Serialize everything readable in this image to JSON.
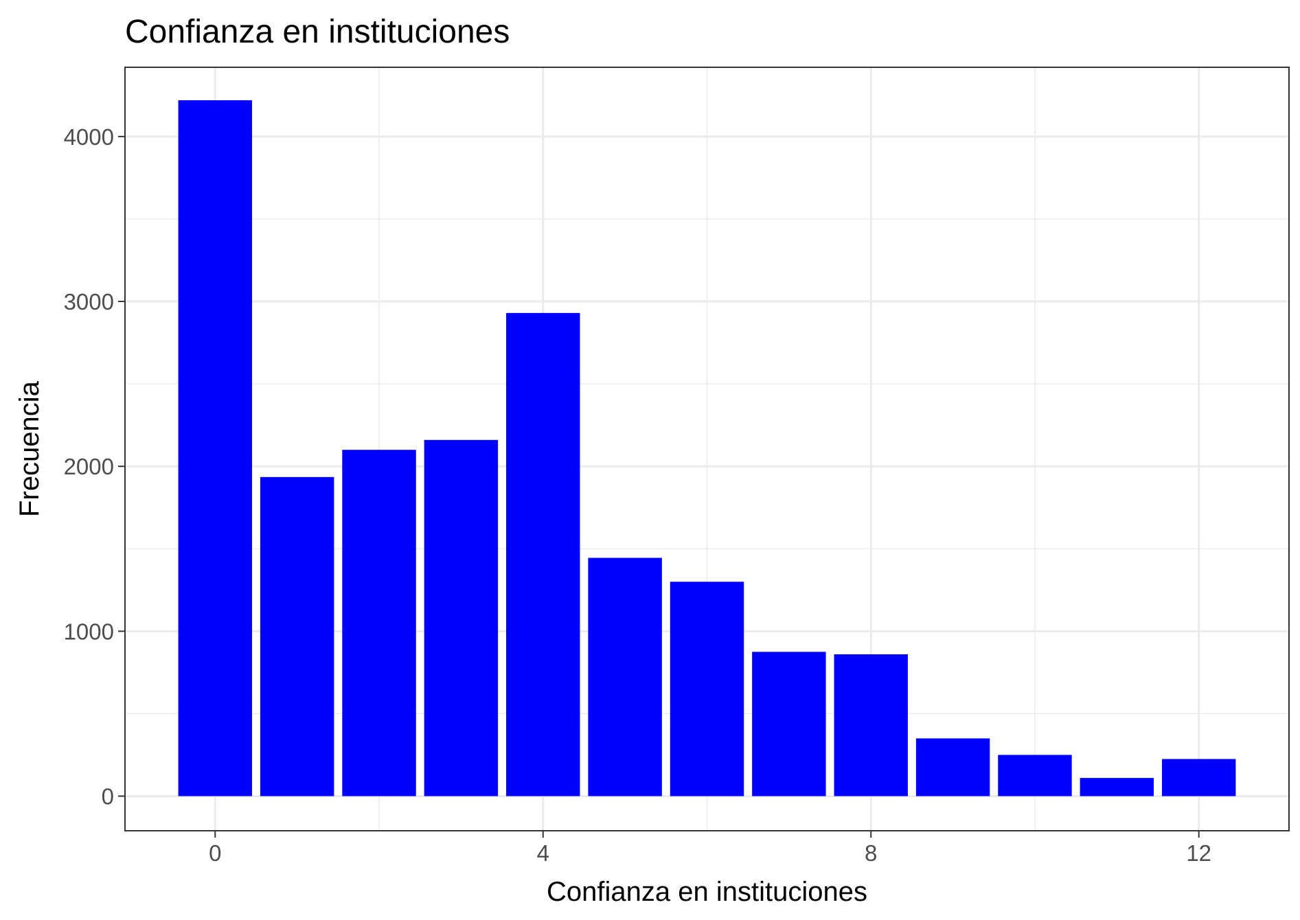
{
  "chart_data": {
    "type": "bar",
    "title": "Confianza en instituciones",
    "xlabel": "Confianza en instituciones",
    "ylabel": "Frecuencia",
    "x": [
      0,
      1,
      2,
      3,
      4,
      5,
      6,
      7,
      8,
      9,
      10,
      11,
      12
    ],
    "values": [
      4220,
      1935,
      2100,
      2160,
      2930,
      1445,
      1300,
      875,
      860,
      350,
      250,
      110,
      225
    ],
    "xlim": [
      -1.1,
      13.1
    ],
    "ylim": [
      -210,
      4420
    ],
    "x_ticks": [
      0,
      4,
      8,
      12
    ],
    "x_tick_labels": [
      "0",
      "4",
      "8",
      "12"
    ],
    "y_ticks": [
      0,
      1000,
      2000,
      3000,
      4000
    ],
    "y_tick_labels": [
      "0",
      "1000",
      "2000",
      "3000",
      "4000"
    ],
    "bar_color": "#0000ff",
    "grid": true,
    "legend": "none"
  }
}
